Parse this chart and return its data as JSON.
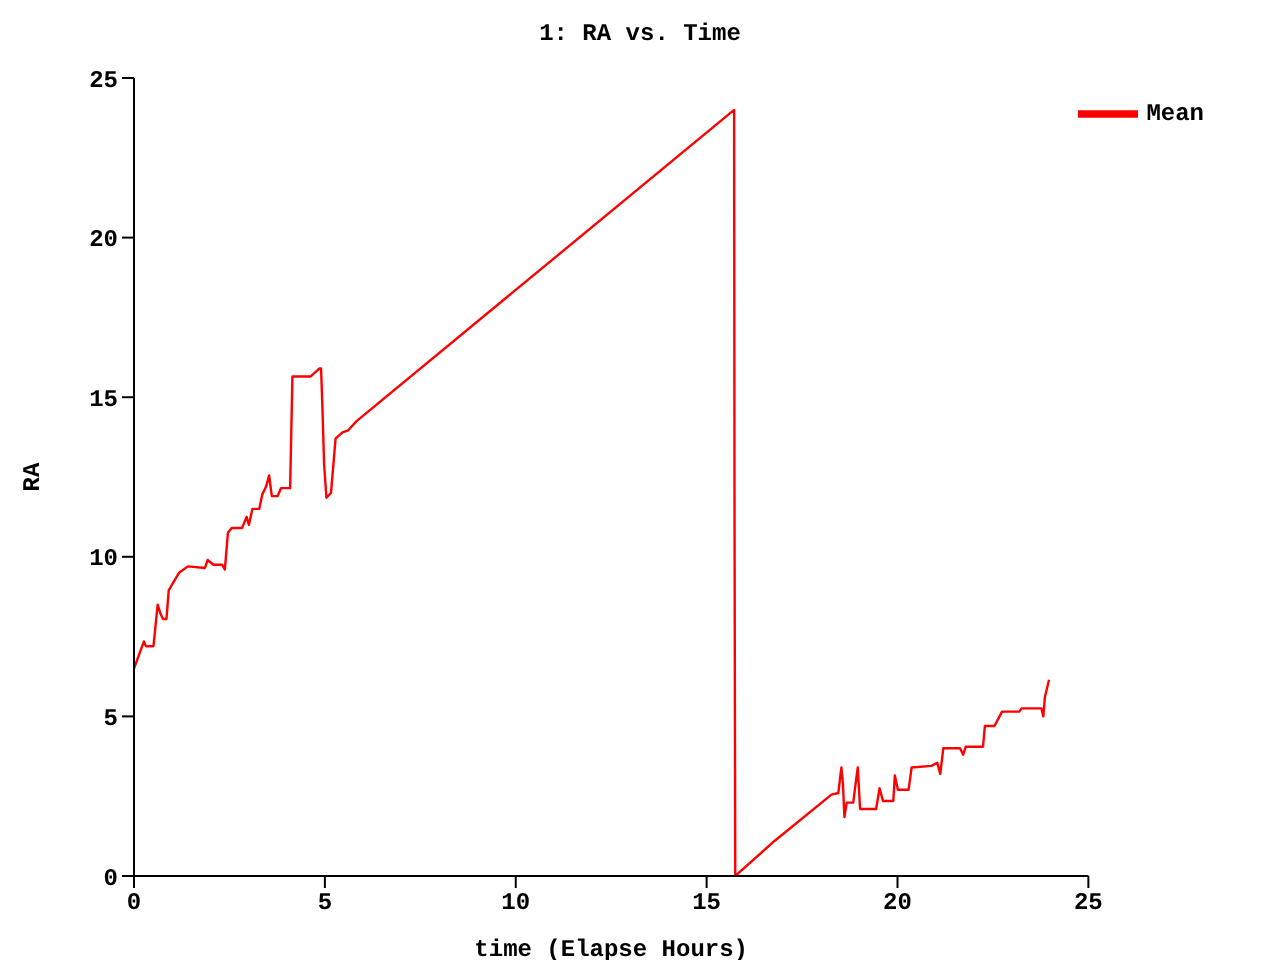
{
  "chart_data": {
    "type": "line",
    "title": "1: RA vs. Time",
    "xlabel": "time (Elapse Hours)",
    "ylabel": "RA",
    "xlim": [
      0,
      25
    ],
    "xticks": [
      0,
      5,
      10,
      15,
      20,
      25
    ],
    "ylim": [
      0,
      25
    ],
    "yticks": [
      0,
      5,
      10,
      15,
      20,
      25
    ],
    "legend": "top right",
    "marker": "none",
    "line_style": "solid",
    "series": [
      {
        "name": "Mean",
        "color": "#ff0000",
        "x": [
          0,
          0.26,
          0.31,
          0.51,
          0.62,
          0.7,
          0.76,
          0.85,
          0.91,
          1.03,
          1.18,
          1.41,
          1.86,
          1.93,
          2.08,
          2.31,
          2.38,
          2.46,
          2.56,
          2.83,
          2.95,
          3.01,
          3.1,
          3.28,
          3.36,
          3.46,
          3.54,
          3.61,
          3.76,
          3.85,
          4.09,
          4.15,
          4.63,
          4.86,
          4.9,
          4.93,
          4.98,
          5.04,
          5.16,
          5.28,
          5.46,
          5.6,
          5.83,
          15.72,
          15.73,
          15.75,
          16.77,
          18.27,
          18.45,
          18.53,
          18.57,
          18.61,
          18.67,
          18.84,
          18.92,
          18.96,
          19.02,
          19.44,
          19.53,
          19.62,
          19.89,
          19.93,
          20.01,
          20.29,
          20.37,
          20.89,
          21.04,
          21.12,
          21.2,
          21.64,
          21.72,
          21.79,
          22.24,
          22.29,
          22.54,
          22.74,
          23.19,
          23.25,
          23.77,
          23.82,
          23.86,
          23.97
        ],
        "values": [
          6.5,
          7.35,
          7.2,
          7.2,
          8.5,
          8.2,
          8.05,
          8.05,
          8.95,
          9.2,
          9.5,
          9.7,
          9.65,
          9.9,
          9.75,
          9.75,
          9.6,
          10.75,
          10.9,
          10.9,
          11.25,
          11.0,
          11.5,
          11.5,
          11.95,
          12.2,
          12.55,
          11.9,
          11.9,
          12.15,
          12.15,
          15.65,
          15.65,
          15.9,
          15.9,
          14.9,
          12.9,
          11.85,
          12.0,
          13.7,
          13.9,
          13.95,
          14.25,
          24.0,
          12.0,
          0,
          1.09,
          2.55,
          2.6,
          3.4,
          2.9,
          1.85,
          2.3,
          2.3,
          3.05,
          3.4,
          2.1,
          2.1,
          2.75,
          2.35,
          2.35,
          3.15,
          2.7,
          2.7,
          3.4,
          3.45,
          3.55,
          3.2,
          4.0,
          4.0,
          3.8,
          4.05,
          4.05,
          4.7,
          4.7,
          5.15,
          5.15,
          5.25,
          5.25,
          5.0,
          5.6,
          6.15
        ]
      }
    ]
  }
}
